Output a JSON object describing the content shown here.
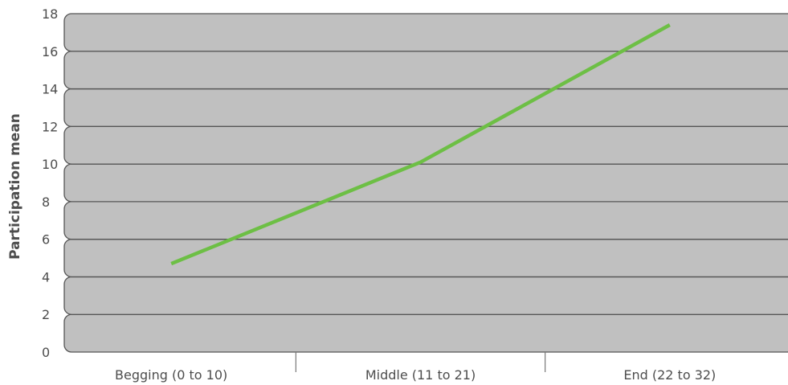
{
  "chart_data": {
    "type": "line",
    "title": "",
    "ylabel": "Participation mean",
    "xlabel": "",
    "categories": [
      "Begging (0 to 10)",
      "Middle (11 to 21)",
      "End (22 to 32)"
    ],
    "series": [
      {
        "values": [
          4.7,
          10.1,
          17.4
        ],
        "color": "#6dbf45"
      }
    ],
    "ylim": [
      0,
      18
    ],
    "yticks": [
      "0",
      "2",
      "4",
      "6",
      "8",
      "10",
      "12",
      "14",
      "16",
      "18"
    ],
    "grid": true,
    "legend": "none",
    "band_color": "#c0c0c0",
    "band_border_color": "#555555"
  }
}
